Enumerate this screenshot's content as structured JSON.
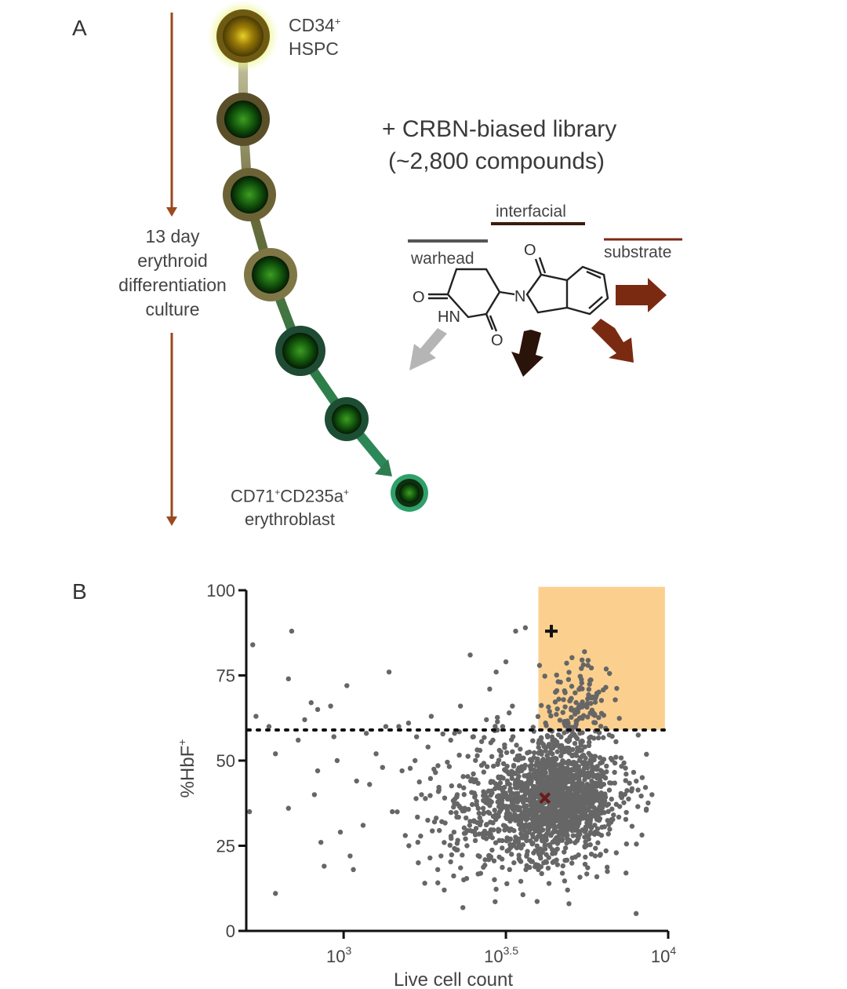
{
  "panel_a": {
    "letter": "A",
    "start_cell": {
      "line1": "CD34",
      "sup1": "+",
      "line2": "HSPC"
    },
    "culture_label": [
      "13 day",
      "erythroid",
      "differentiation",
      "culture"
    ],
    "end_cell": {
      "line1a": "CD71",
      "sup1a": "+",
      "line1b": "CD235a",
      "sup1b": "+",
      "line2": "erythroblast"
    },
    "library": {
      "line1": "+ CRBN-biased library",
      "line2": "(~2,800 compounds)"
    },
    "regions": {
      "warhead": "warhead",
      "interfacial": "interfacial",
      "substrate": "substrate"
    },
    "atoms": {
      "o_top": "O",
      "n_ring": "N",
      "o_left": "O",
      "hn": "HN",
      "o_bottom": "O"
    },
    "colors": {
      "culture_arrow": "#9a4a1e",
      "trajectory": "#2e7d4f",
      "warhead": "#555555",
      "interfacial": "#3b1a0c",
      "substrate": "#7b2a12"
    }
  },
  "panel_b": {
    "letter": "B"
  },
  "chart_data": {
    "type": "scatter",
    "xlabel": "Live cell count",
    "ylabel": "%HbF",
    "ylabel_sup": "+",
    "x_scale": "log10",
    "xlim": [
      2.7,
      4.0
    ],
    "ylim": [
      0,
      100
    ],
    "x_ticks": [
      {
        "base": "10",
        "exp": "3",
        "value": 3.0
      },
      {
        "base": "10",
        "exp": "3.5",
        "value": 3.5
      },
      {
        "base": "10",
        "exp": "4",
        "value": 4.0
      }
    ],
    "y_ticks": [
      0,
      25,
      50,
      75,
      100
    ],
    "threshold_y": 59,
    "hit_region": {
      "x": [
        3.6,
        3.99
      ],
      "y": [
        59,
        101
      ],
      "color": "#fbd08f"
    },
    "colors": {
      "points": "#666666",
      "threshold": "#111111",
      "reference_cross": "#6b1a1a",
      "hit_plus": "#111111"
    },
    "special_points": [
      {
        "name": "hit",
        "marker": "plus",
        "x": 3.64,
        "y": 88
      },
      {
        "name": "reference",
        "marker": "x",
        "x": 3.62,
        "y": 39
      }
    ],
    "points": [
      [
        2.72,
        84
      ],
      [
        2.71,
        35
      ],
      [
        2.73,
        63
      ],
      [
        2.77,
        60
      ],
      [
        2.79,
        52
      ],
      [
        2.79,
        11
      ],
      [
        2.84,
        88
      ],
      [
        2.83,
        74
      ],
      [
        2.83,
        36
      ],
      [
        2.86,
        56
      ],
      [
        2.88,
        62
      ],
      [
        2.9,
        67
      ],
      [
        2.91,
        40
      ],
      [
        2.92,
        65
      ],
      [
        2.93,
        26
      ],
      [
        2.94,
        19
      ],
      [
        2.92,
        47
      ],
      [
        2.96,
        66
      ],
      [
        2.97,
        57
      ],
      [
        2.98,
        50
      ],
      [
        2.99,
        29
      ],
      [
        3.01,
        72
      ],
      [
        3.02,
        22
      ],
      [
        3.03,
        18
      ],
      [
        3.04,
        44
      ],
      [
        3.06,
        31
      ],
      [
        3.07,
        58
      ],
      [
        3.08,
        43
      ],
      [
        3.1,
        52
      ],
      [
        3.12,
        48
      ],
      [
        3.14,
        76
      ],
      [
        3.15,
        35
      ],
      [
        3.17,
        60
      ],
      [
        3.18,
        47
      ],
      [
        3.19,
        28
      ],
      [
        3.2,
        61
      ],
      [
        3.22,
        50
      ],
      [
        3.23,
        20
      ],
      [
        3.25,
        14
      ],
      [
        3.26,
        54
      ],
      [
        3.27,
        63
      ],
      [
        3.28,
        32
      ],
      [
        3.3,
        22
      ],
      [
        3.31,
        12
      ],
      [
        3.33,
        56
      ],
      [
        3.34,
        29
      ],
      [
        3.35,
        40
      ],
      [
        3.36,
        66
      ],
      [
        3.37,
        42
      ],
      [
        3.38,
        25
      ],
      [
        3.39,
        81
      ],
      [
        3.4,
        57
      ],
      [
        3.41,
        37
      ],
      [
        3.42,
        53
      ],
      [
        3.43,
        36
      ],
      [
        3.44,
        62
      ],
      [
        3.45,
        71
      ],
      [
        3.46,
        56
      ],
      [
        3.47,
        76
      ],
      [
        3.48,
        53
      ],
      [
        3.49,
        60
      ],
      [
        3.5,
        79
      ],
      [
        3.51,
        64
      ],
      [
        3.52,
        66
      ],
      [
        3.53,
        88
      ],
      [
        3.56,
        89
      ],
      [
        3.13,
        60
      ],
      [
        3.24,
        40
      ],
      [
        3.29,
        18
      ],
      [
        3.37,
        15
      ],
      [
        3.6,
        18
      ],
      [
        3.69,
        12
      ],
      [
        3.87,
        17
      ],
      [
        3.95,
        40
      ],
      [
        3.92,
        45
      ]
    ],
    "clusters": [
      {
        "cx": 3.67,
        "cy": 40,
        "sx": 0.085,
        "sy": 8.5,
        "n": 1150,
        "seed": 11
      },
      {
        "cx": 3.58,
        "cy": 36,
        "sx": 0.14,
        "sy": 10,
        "n": 420,
        "seed": 23
      },
      {
        "cx": 3.45,
        "cy": 35,
        "sx": 0.09,
        "sy": 9,
        "n": 160,
        "seed": 37
      },
      {
        "cx": 3.73,
        "cy": 66,
        "sx": 0.055,
        "sy": 6.5,
        "n": 130,
        "seed": 53
      }
    ]
  }
}
